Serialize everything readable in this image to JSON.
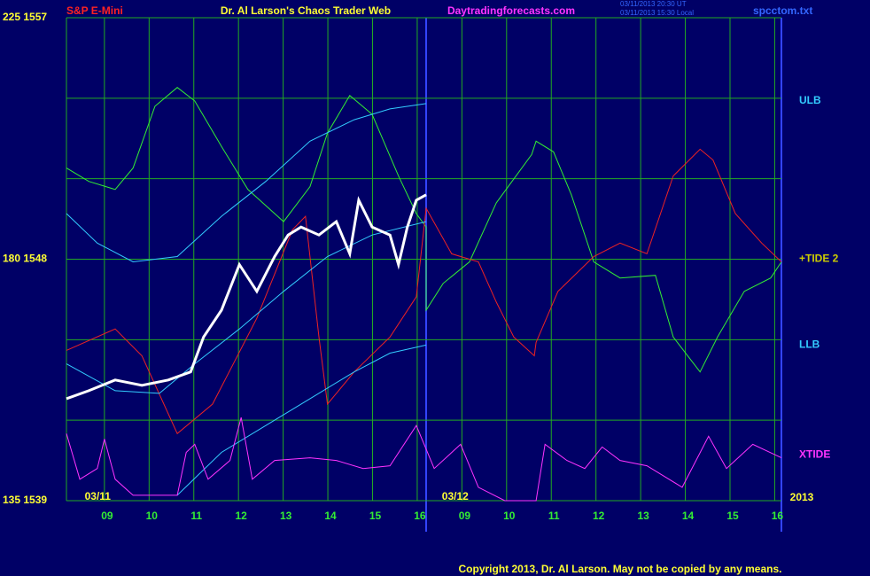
{
  "chart_data": {
    "type": "line",
    "symbol": "S&P E-Mini",
    "title": "Dr. Al Larson's Chaos Trader Web",
    "site": "Daytradingforecasts.com",
    "timestamps": [
      "03/11/2013 20:30 UT",
      "03/11/2013 15:30 Local"
    ],
    "file": "spcctom.txt",
    "copyright": "Copyright 2013, Dr. Al Larson. May not be copied by any means.",
    "year": "2013",
    "ylim": [
      1539,
      1557
    ],
    "yticks": [
      {
        "value": 1539,
        "label": "135 1539"
      },
      {
        "value": 1548,
        "label": "180 1548"
      },
      {
        "value": 1557,
        "label": "225 1557"
      }
    ],
    "minor_yticks": [
      1542,
      1545,
      1551,
      1554
    ],
    "xlim": [
      0.15,
      16.15
    ],
    "xticks": [
      {
        "value": 1,
        "label": "09"
      },
      {
        "value": 2,
        "label": "10"
      },
      {
        "value": 3,
        "label": "11"
      },
      {
        "value": 4,
        "label": "12"
      },
      {
        "value": 5,
        "label": "13"
      },
      {
        "value": 6,
        "label": "14"
      },
      {
        "value": 7,
        "label": "15"
      },
      {
        "value": 8,
        "label": "16"
      },
      {
        "value": 9,
        "label": "09"
      },
      {
        "value": 10,
        "label": "10"
      },
      {
        "value": 11,
        "label": "11"
      },
      {
        "value": 12,
        "label": "12"
      },
      {
        "value": 13,
        "label": "13"
      },
      {
        "value": 14,
        "label": "14"
      },
      {
        "value": 15,
        "label": "15"
      },
      {
        "value": 16,
        "label": "16"
      }
    ],
    "date_ticks": [
      {
        "value": 0.85,
        "label": "03/11"
      },
      {
        "value": 8.85,
        "label": "03/12"
      }
    ],
    "level_labels": [
      {
        "value": 1553.9,
        "label": "ULB",
        "color": "#33ccff"
      },
      {
        "value": 1548.0,
        "label": "+TIDE 2",
        "color": "#cccc00"
      },
      {
        "value": 1544.8,
        "label": "LLB",
        "color": "#33ccff"
      },
      {
        "value": 1540.7,
        "label": "XTIDE",
        "color": "#ff33ff"
      }
    ],
    "grid": true,
    "series": [
      {
        "color": "#33ee33",
        "width": 1,
        "x": [
          0.15,
          0.65,
          1.24,
          1.64,
          2.13,
          2.63,
          3.02,
          3.62,
          4.21,
          5.01,
          5.6,
          5.99,
          6.49,
          6.99,
          7.58,
          7.98,
          8.2,
          8.2,
          8.58,
          9.17,
          9.77,
          10.56,
          10.66,
          11.05,
          11.45,
          11.95,
          12.54,
          13.33,
          13.73,
          14.33,
          14.72,
          15.32,
          15.91,
          16.15
        ],
        "values": [
          1551.4,
          1550.9,
          1550.6,
          1551.4,
          1553.7,
          1554.4,
          1553.9,
          1552.2,
          1550.6,
          1549.4,
          1550.7,
          1552.7,
          1554.1,
          1553.4,
          1551.1,
          1549.7,
          1549.2,
          1546.1,
          1547.1,
          1547.9,
          1550.1,
          1551.9,
          1552.4,
          1552.0,
          1550.4,
          1547.9,
          1547.3,
          1547.4,
          1545.1,
          1543.8,
          1545.1,
          1546.8,
          1547.3,
          1547.9
        ]
      },
      {
        "color": "#ee2222",
        "width": 1,
        "x": [
          0.15,
          1.24,
          1.84,
          2.63,
          3.42,
          4.41,
          5.21,
          5.5,
          5.8,
          5.99,
          6.59,
          7.39,
          7.98,
          8.2,
          8.77,
          9.37,
          9.77,
          10.16,
          10.62,
          10.66,
          11.15,
          11.95,
          12.54,
          13.14,
          13.73,
          14.33,
          14.62,
          15.12,
          15.71,
          16.15
        ],
        "values": [
          1544.6,
          1545.4,
          1544.4,
          1541.5,
          1542.6,
          1545.8,
          1549.1,
          1549.6,
          1545.1,
          1542.6,
          1543.8,
          1545.1,
          1546.6,
          1549.9,
          1548.2,
          1547.9,
          1546.4,
          1545.1,
          1544.4,
          1544.9,
          1546.8,
          1548.1,
          1548.6,
          1548.2,
          1551.1,
          1552.1,
          1551.7,
          1549.7,
          1548.6,
          1547.9
        ]
      },
      {
        "color": "#33ccff",
        "width": 1,
        "x": [
          0.15,
          0.84,
          1.64,
          2.63,
          3.62,
          4.61,
          5.6,
          6.59,
          7.39,
          8.2
        ],
        "values": [
          1549.7,
          1548.6,
          1547.9,
          1548.1,
          1549.6,
          1550.9,
          1552.4,
          1553.2,
          1553.6,
          1553.8
        ]
      },
      {
        "color": "#33ccff",
        "width": 1,
        "x": [
          0.15,
          1.24,
          2.23,
          3.02,
          4.02,
          5.01,
          5.99,
          6.99,
          8.2
        ],
        "values": [
          1544.1,
          1543.1,
          1543.0,
          1544.1,
          1545.4,
          1546.8,
          1548.1,
          1548.9,
          1549.4
        ]
      },
      {
        "color": "#33ccff",
        "width": 1,
        "x": [
          2.63,
          3.62,
          4.61,
          5.6,
          6.59,
          7.39,
          8.2
        ],
        "values": [
          1539.2,
          1540.8,
          1541.8,
          1542.8,
          1543.8,
          1544.5,
          1544.8
        ]
      },
      {
        "color": "#ff33ff",
        "width": 1,
        "x": [
          0.15,
          0.45,
          0.84,
          1.0,
          1.24,
          1.64,
          2.63,
          2.83,
          3.02,
          3.32,
          3.81,
          4.06,
          4.31,
          4.81,
          5.6,
          6.19,
          6.79,
          7.39,
          7.98,
          8.38,
          8.97,
          9.37,
          9.96,
          10.66,
          10.86,
          11.35,
          11.75,
          12.14,
          12.54,
          13.14,
          13.93,
          14.52,
          14.92,
          15.51,
          16.15
        ],
        "values": [
          1541.5,
          1539.8,
          1540.2,
          1541.3,
          1539.8,
          1539.2,
          1539.2,
          1540.8,
          1541.1,
          1539.8,
          1540.5,
          1542.1,
          1539.8,
          1540.5,
          1540.6,
          1540.5,
          1540.2,
          1540.3,
          1541.8,
          1540.2,
          1541.1,
          1539.5,
          1539.0,
          1539.0,
          1541.1,
          1540.5,
          1540.2,
          1541.0,
          1540.5,
          1540.3,
          1539.5,
          1541.4,
          1540.2,
          1541.1,
          1540.6
        ]
      },
      {
        "color": "#ffffff",
        "width": 3,
        "x": [
          0.15,
          0.65,
          1.24,
          1.84,
          2.43,
          2.93,
          3.22,
          3.62,
          4.02,
          4.41,
          4.81,
          5.11,
          5.4,
          5.8,
          6.19,
          6.49,
          6.69,
          6.99,
          7.39,
          7.58,
          7.78,
          7.98,
          8.2
        ],
        "values": [
          1542.8,
          1543.1,
          1543.5,
          1543.3,
          1543.5,
          1543.8,
          1545.1,
          1546.1,
          1547.8,
          1546.8,
          1548.1,
          1548.9,
          1549.2,
          1548.9,
          1549.4,
          1548.2,
          1550.2,
          1549.2,
          1548.9,
          1547.8,
          1549.2,
          1550.2,
          1550.4
        ]
      }
    ]
  }
}
